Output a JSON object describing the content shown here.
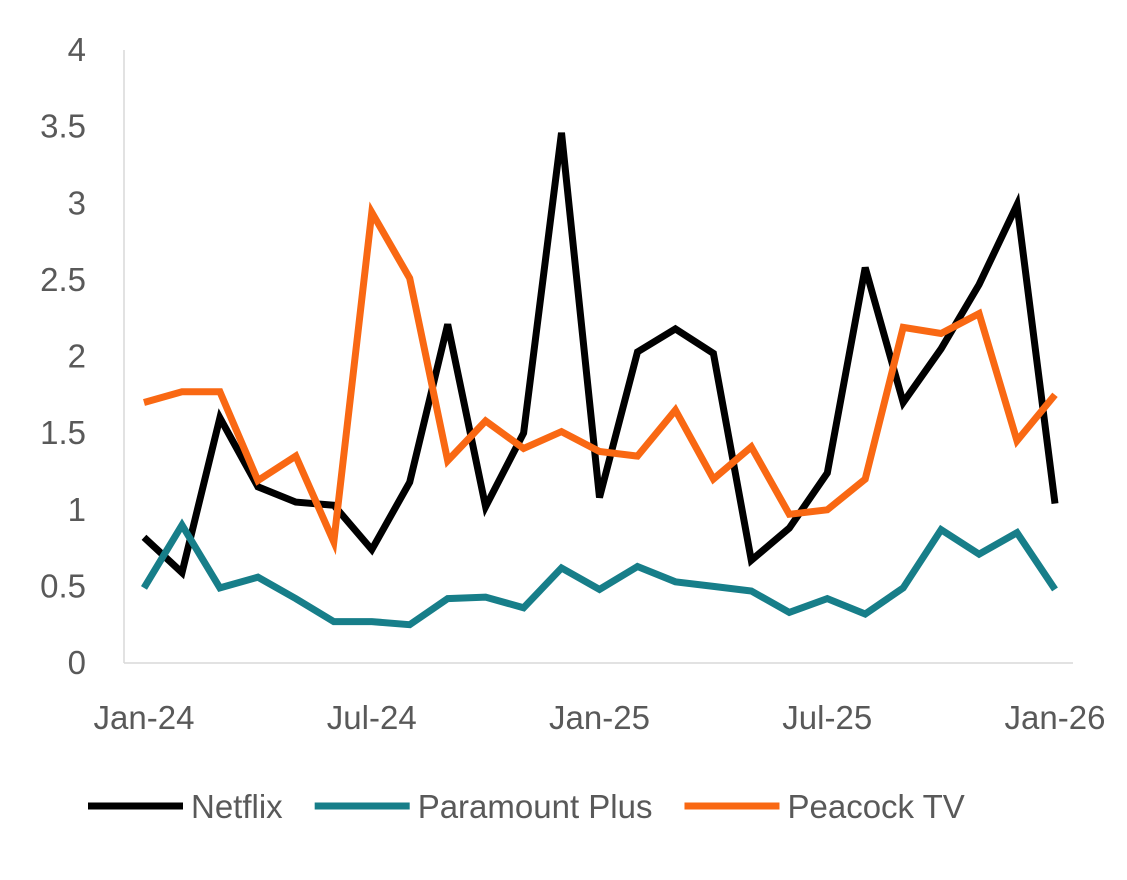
{
  "chart_data": {
    "type": "line",
    "title": "",
    "xlabel": "",
    "ylabel": "",
    "ylim": [
      0,
      4
    ],
    "yticks": [
      "0",
      "0.5",
      "1",
      "1.5",
      "2",
      "2.5",
      "3",
      "3.5",
      "4"
    ],
    "xtick_labels": [
      "Jan-24",
      "Jul-24",
      "Jan-25",
      "Jul-25",
      "Jan-26"
    ],
    "x": [
      "2024-01",
      "2024-02",
      "2024-03",
      "2024-04",
      "2024-05",
      "2024-06",
      "2024-07",
      "2024-08",
      "2024-09",
      "2024-10",
      "2024-11",
      "2024-12",
      "2025-01",
      "2025-02",
      "2025-03",
      "2025-04",
      "2025-05",
      "2025-06",
      "2025-07",
      "2025-08",
      "2025-09",
      "2025-10",
      "2025-11",
      "2025-12",
      "2026-01"
    ],
    "grid": false,
    "legend_position": "bottom",
    "series": [
      {
        "name": "Netflix",
        "color": "#000000",
        "values": [
          0.82,
          0.59,
          1.6,
          1.15,
          1.05,
          1.03,
          0.74,
          1.18,
          2.21,
          1.02,
          1.5,
          3.46,
          1.08,
          2.03,
          2.18,
          2.02,
          0.67,
          0.88,
          1.24,
          2.58,
          1.7,
          2.05,
          2.47,
          2.99,
          1.04
        ]
      },
      {
        "name": "Paramount Plus",
        "color": "#177E89",
        "values": [
          0.49,
          0.9,
          0.49,
          0.56,
          0.42,
          0.27,
          0.27,
          0.25,
          0.42,
          0.43,
          0.36,
          0.62,
          0.48,
          0.63,
          0.53,
          0.5,
          0.47,
          0.33,
          0.42,
          0.32,
          0.49,
          0.87,
          0.71,
          0.85,
          0.48
        ]
      },
      {
        "name": "Peacock TV",
        "color": "#F96813",
        "values": [
          1.7,
          1.77,
          1.77,
          1.19,
          1.35,
          0.79,
          2.94,
          2.51,
          1.32,
          1.58,
          1.4,
          1.51,
          1.38,
          1.35,
          1.65,
          1.2,
          1.41,
          0.97,
          1.0,
          1.2,
          2.19,
          2.15,
          2.28,
          1.45,
          1.75
        ]
      }
    ]
  }
}
